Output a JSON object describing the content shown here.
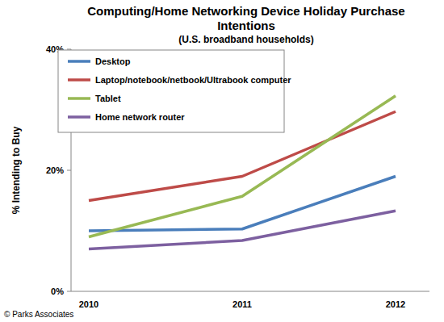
{
  "chart_data": {
    "type": "line",
    "title": "Computing/Home Networking Device Holiday Purchase Intentions",
    "subtitle": "(U.S. broadband households)",
    "y_label": "% Intending to Buy",
    "source": "© Parks Associates",
    "categories": [
      "2010",
      "2011",
      "2012"
    ],
    "series": [
      {
        "name": "Desktop",
        "color": "#4a7ebb",
        "values": [
          10,
          10.3,
          19
        ]
      },
      {
        "name": "Laptop/notebook/netbook/Ultrabook computer",
        "color": "#be4b48",
        "values": [
          15,
          19,
          29.7
        ]
      },
      {
        "name": "Tablet",
        "color": "#98b954",
        "values": [
          9,
          15.7,
          32.3
        ]
      },
      {
        "name": "Home network router",
        "color": "#7d60a0",
        "values": [
          7,
          8.4,
          13.3
        ]
      }
    ],
    "ylim": [
      0,
      40
    ],
    "yticks": [
      {
        "value": 0,
        "label": "0%"
      },
      {
        "value": 20,
        "label": "20%"
      },
      {
        "value": 40,
        "label": "40%"
      }
    ],
    "grid": false,
    "legend": "upper left"
  }
}
